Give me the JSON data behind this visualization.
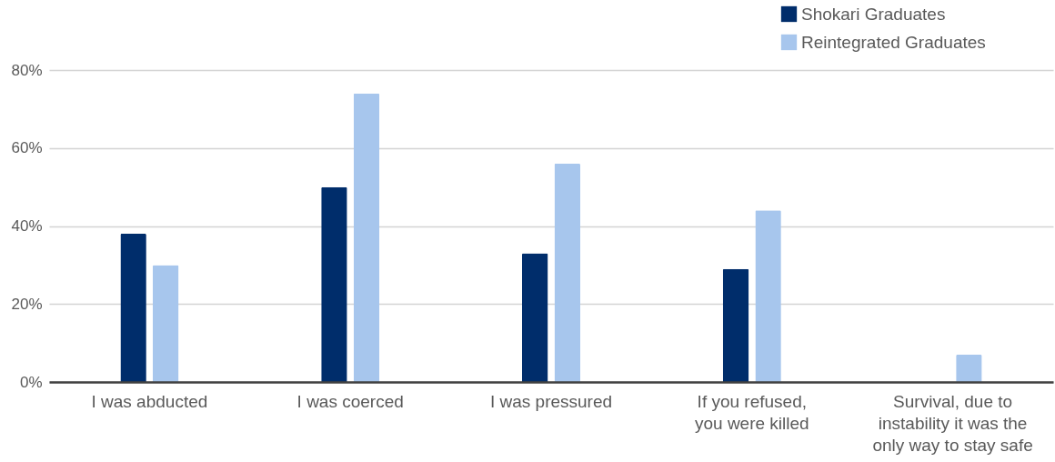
{
  "chart_data": {
    "type": "bar",
    "categories": [
      "I was abducted",
      "I was coerced",
      "I was pressured",
      "If you refused,\nyou were killed",
      "Survival, due to\ninstability it was the\nonly way to stay safe"
    ],
    "series": [
      {
        "name": "Shokari Graduates",
        "color": "#002d6b",
        "values": [
          38,
          50,
          33,
          29,
          null
        ]
      },
      {
        "name": "Reintegrated Graduates",
        "color": "#a7c6ed",
        "values": [
          30,
          74,
          56,
          44,
          7
        ]
      }
    ],
    "ylim": [
      0,
      80
    ],
    "yticks": [
      {
        "value": 0,
        "label": "0%"
      },
      {
        "value": 20,
        "label": "20%"
      },
      {
        "value": 40,
        "label": "40%"
      },
      {
        "value": 60,
        "label": "60%"
      },
      {
        "value": 80,
        "label": "80%"
      }
    ],
    "grid": "y",
    "legend": "top right"
  }
}
